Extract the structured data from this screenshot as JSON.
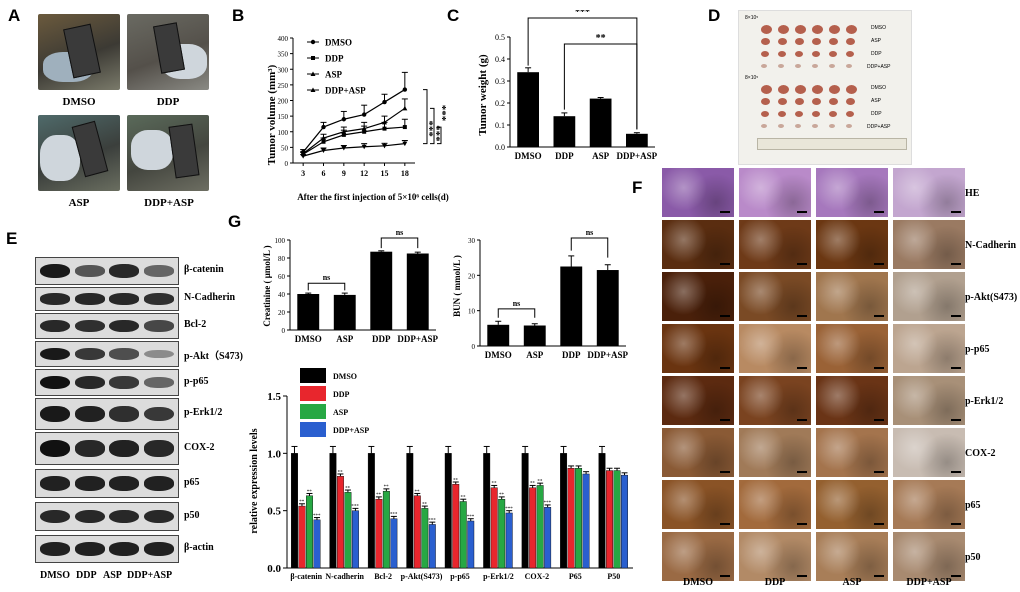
{
  "panels": {
    "A": "A",
    "B": "B",
    "C": "C",
    "D": "D",
    "E": "E",
    "F": "F",
    "G": "G"
  },
  "panel_a": {
    "captions": [
      "DMSO",
      "DDP",
      "ASP",
      "DDP+ASP"
    ]
  },
  "panel_d": {
    "group1_label": "8×10⁵",
    "group2_label": "8×10⁵",
    "rows": [
      "DMSO",
      "ASP",
      "DDP",
      "DDP+ASP"
    ]
  },
  "panel_e": {
    "proteins": [
      "β-catenin",
      "N-Cadherin",
      "Bcl-2",
      "p-Akt（S473)",
      "p-p65",
      "p-Erk1/2",
      "COX-2",
      "p65",
      "p50",
      "β-actin"
    ],
    "lanes": [
      "DMSO",
      "DDP",
      "ASP",
      "DDP+ASP"
    ],
    "band_intensity": [
      [
        0.95,
        0.55,
        0.85,
        0.45
      ],
      [
        0.85,
        0.85,
        0.85,
        0.8
      ],
      [
        0.85,
        0.8,
        0.85,
        0.65
      ],
      [
        0.95,
        0.75,
        0.6,
        0.2
      ],
      [
        1,
        0.85,
        0.75,
        0.45
      ],
      [
        0.95,
        0.9,
        0.8,
        0.75
      ],
      [
        1,
        0.85,
        0.9,
        0.85
      ],
      [
        0.9,
        0.9,
        0.9,
        0.9
      ],
      [
        0.85,
        0.85,
        0.85,
        0.85
      ],
      [
        0.9,
        0.9,
        0.9,
        0.9
      ]
    ]
  },
  "panel_f": {
    "rows": [
      "HE",
      "N-Cadherin",
      "p-Akt(S473)",
      "p-p65",
      "p-Erk1/2",
      "COX-2",
      "p65",
      "p50"
    ],
    "cols": [
      "DMSO",
      "DDP",
      "ASP",
      "DDP+ASP"
    ]
  },
  "chart_data": [
    {
      "id": "B",
      "type": "line",
      "title": "",
      "xlabel": "After the first injection of 5×10⁶  cells(d)",
      "ylabel": "Tumor volume (mm³)",
      "x": [
        3,
        6,
        9,
        12,
        15,
        18
      ],
      "xticks": [
        "3",
        "6",
        "9",
        "12",
        "15",
        "18"
      ],
      "ylim": [
        0,
        400
      ],
      "yticks": [
        "0",
        "50",
        "100",
        "150",
        "200",
        "250",
        "300",
        "350",
        "400"
      ],
      "series": [
        {
          "name": "DMSO",
          "values": [
            35,
            115,
            140,
            155,
            195,
            235
          ],
          "err": [
            8,
            15,
            25,
            30,
            25,
            55
          ]
        },
        {
          "name": "DDP",
          "values": [
            28,
            68,
            90,
            100,
            110,
            115
          ],
          "err": [
            6,
            12,
            15,
            18,
            20,
            25
          ]
        },
        {
          "name": "ASP",
          "values": [
            30,
            80,
            100,
            110,
            130,
            175
          ],
          "err": [
            6,
            12,
            15,
            20,
            20,
            30
          ]
        },
        {
          "name": "DDP+ASP",
          "values": [
            22,
            40,
            48,
            52,
            55,
            62
          ],
          "err": [
            5,
            8,
            8,
            10,
            8,
            10
          ]
        }
      ],
      "annotations": [
        "***",
        "***",
        "***"
      ]
    },
    {
      "id": "C",
      "type": "bar",
      "ylabel": "Tumor weight (g)",
      "categories": [
        "DMSO",
        "DDP",
        "ASP",
        "DDP+ASP"
      ],
      "values": [
        0.34,
        0.14,
        0.22,
        0.06
      ],
      "err": [
        0.02,
        0.015,
        0.005,
        0.005
      ],
      "ylim": [
        0,
        0.5
      ],
      "yticks": [
        "0.0",
        "0.1",
        "0.2",
        "0.3",
        "0.4",
        "0.5"
      ],
      "annotations": [
        "***",
        "**"
      ]
    },
    {
      "id": "G1",
      "type": "bar",
      "ylabel": "Creatinine ( μmol/L )",
      "categories": [
        "DMSO",
        "ASP",
        "DDP",
        "DDP+ASP"
      ],
      "values": [
        40,
        39,
        87,
        85
      ],
      "err": [
        1,
        2,
        1,
        1.5
      ],
      "ylim": [
        0,
        100
      ],
      "yticks": [
        "0",
        "20",
        "40",
        "60",
        "80",
        "100"
      ],
      "annotations": [
        "ns",
        "ns"
      ]
    },
    {
      "id": "G2",
      "type": "bar",
      "ylabel": "BUN ( mmol/L )",
      "categories": [
        "DMSO",
        "ASP",
        "DDP",
        "DDP+ASP"
      ],
      "values": [
        6,
        5.8,
        22.5,
        21.5
      ],
      "err": [
        1,
        0.5,
        3,
        1.5
      ],
      "ylim": [
        0,
        30
      ],
      "yticks": [
        "0",
        "10",
        "20",
        "30"
      ],
      "annotations": [
        "ns",
        "ns"
      ]
    },
    {
      "id": "G3",
      "type": "bar",
      "ylabel": "relative expression levels",
      "categories": [
        "β-catenin",
        "N-cadherin",
        "Bcl-2",
        "p-Akt(S473)",
        "p-p65",
        "p-Erk1/2",
        "COX-2",
        "P65",
        "P50"
      ],
      "ylim": [
        0,
        1.5
      ],
      "yticks": [
        "0.0",
        "0.5",
        "1.0",
        "1.5"
      ],
      "legend": [
        "DMSO",
        "DDP",
        "ASP",
        "DDP+ASP"
      ],
      "colors": [
        "#000000",
        "#e8262d",
        "#27a844",
        "#2a5fcf"
      ],
      "series": [
        {
          "name": "DMSO",
          "values": [
            1,
            1,
            1,
            1,
            1,
            1,
            1,
            1,
            1
          ]
        },
        {
          "name": "DDP",
          "values": [
            0.54,
            0.8,
            0.6,
            0.63,
            0.73,
            0.7,
            0.7,
            0.87,
            0.85
          ]
        },
        {
          "name": "ASP",
          "values": [
            0.63,
            0.66,
            0.67,
            0.52,
            0.58,
            0.6,
            0.72,
            0.87,
            0.85
          ]
        },
        {
          "name": "DDP+ASP",
          "values": [
            0.42,
            0.5,
            0.43,
            0.38,
            0.41,
            0.48,
            0.53,
            0.82,
            0.81
          ]
        }
      ],
      "sig": [
        "**",
        "**",
        "**",
        "***"
      ]
    }
  ]
}
